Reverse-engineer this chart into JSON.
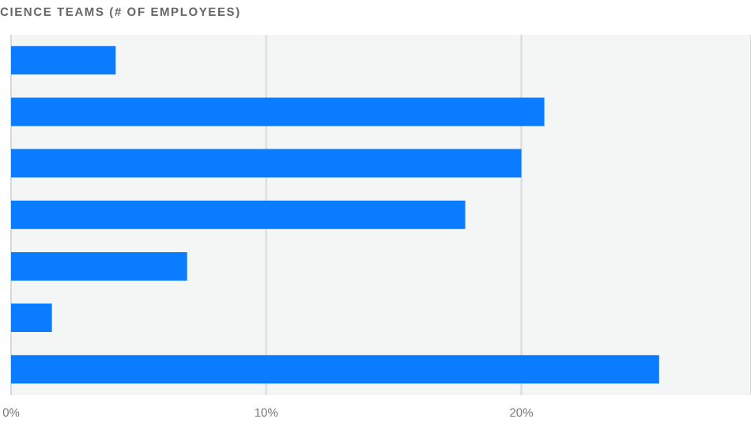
{
  "chart_data": {
    "type": "bar",
    "orientation": "horizontal",
    "title": "CIENCE TEAMS (# OF EMPLOYEES)",
    "categories": [
      null,
      null,
      null,
      null,
      null,
      null,
      null
    ],
    "values": [
      4.1,
      20.9,
      20.0,
      17.8,
      6.9,
      1.6,
      25.4
    ],
    "color": "#0a7cff",
    "xlim": [
      0,
      29
    ],
    "xticks": [
      {
        "value": 0,
        "label": "0%"
      },
      {
        "value": 10,
        "label": "10%"
      },
      {
        "value": 20,
        "label": "20%"
      }
    ],
    "grid": "x"
  }
}
